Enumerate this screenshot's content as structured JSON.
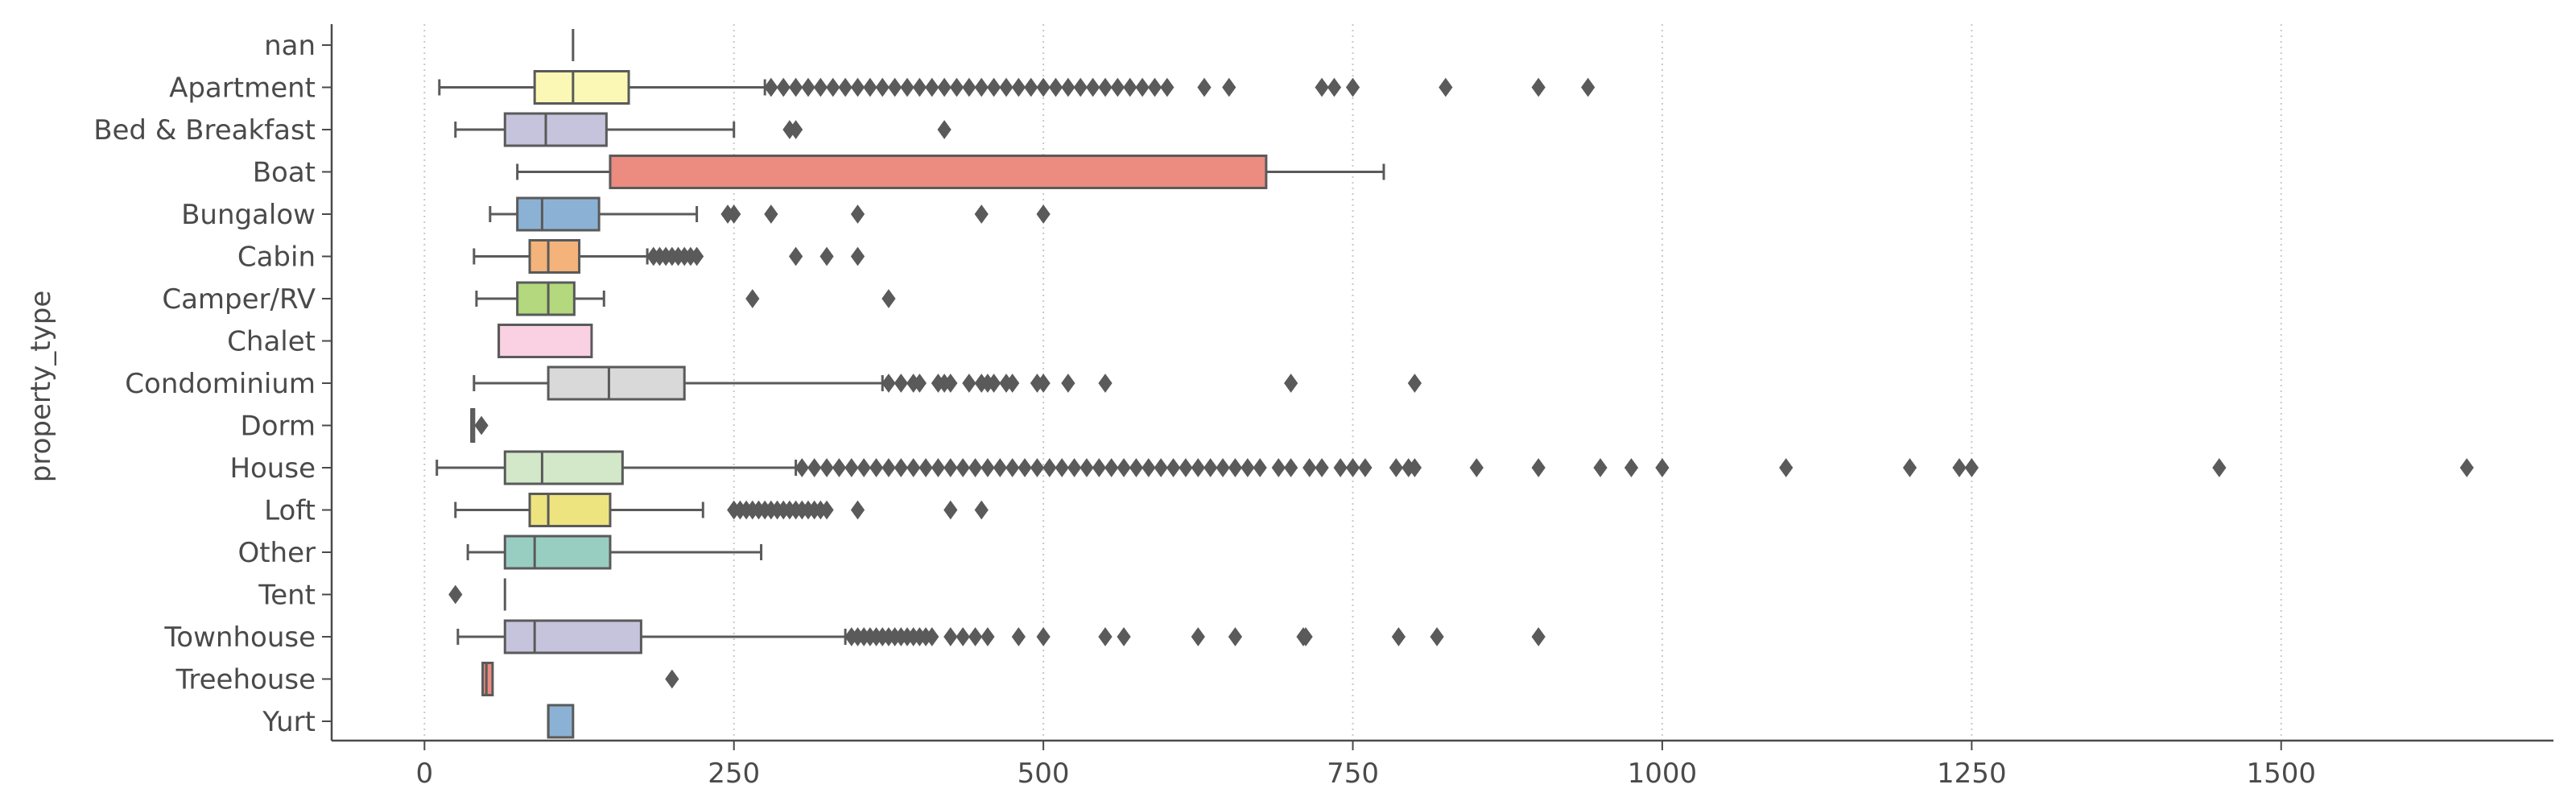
{
  "chart_data": {
    "type": "boxplot",
    "orientation": "horizontal",
    "title": "",
    "xlabel": "",
    "ylabel": "property_type",
    "xlim": [
      -75,
      1720
    ],
    "x_ticks": [
      0,
      250,
      500,
      750,
      1000,
      1250,
      1500
    ],
    "grid": "vertical-dotted",
    "categories": [
      {
        "name": "nan",
        "color": "",
        "min": 120,
        "q1": 120,
        "median": 120,
        "q3": 120,
        "max": 120,
        "outliers": []
      },
      {
        "name": "Apartment",
        "color": "#fbf8b5",
        "min": 12,
        "q1": 89,
        "median": 120,
        "q3": 165,
        "max": 275,
        "outliers": [
          280,
          290,
          300,
          310,
          320,
          330,
          340,
          350,
          360,
          370,
          380,
          390,
          400,
          410,
          420,
          430,
          440,
          450,
          460,
          470,
          480,
          490,
          500,
          510,
          520,
          530,
          540,
          550,
          560,
          570,
          580,
          590,
          600,
          630,
          650,
          725,
          735,
          750,
          825,
          900,
          940
        ]
      },
      {
        "name": "Bed & Breakfast",
        "color": "#c6c3dc",
        "min": 25,
        "q1": 65,
        "median": 98,
        "q3": 147,
        "max": 250,
        "outliers": [
          295,
          300,
          420
        ]
      },
      {
        "name": "Boat",
        "color": "#ec8b80",
        "min": 75,
        "q1": 150,
        "median": 150,
        "q3": 680,
        "max": 775,
        "outliers": []
      },
      {
        "name": "Bungalow",
        "color": "#8bb2d4",
        "min": 53,
        "q1": 75,
        "median": 95,
        "q3": 141,
        "max": 220,
        "outliers": [
          245,
          250,
          280,
          350,
          450,
          500
        ]
      },
      {
        "name": "Cabin",
        "color": "#f4b37a",
        "min": 40,
        "q1": 85,
        "median": 100,
        "q3": 125,
        "max": 180,
        "outliers": [
          185,
          190,
          195,
          200,
          205,
          210,
          215,
          220,
          300,
          325,
          350
        ]
      },
      {
        "name": "Camper/RV",
        "color": "#b3d87d",
        "min": 42,
        "q1": 75,
        "median": 100,
        "q3": 121,
        "max": 145,
        "outliers": [
          265,
          375
        ]
      },
      {
        "name": "Chalet",
        "color": "#f9d1e2",
        "min": 60,
        "q1": 60,
        "median": 60,
        "q3": 135,
        "max": 135,
        "outliers": []
      },
      {
        "name": "Condominium",
        "color": "#d9d9d9",
        "min": 40,
        "q1": 100,
        "median": 149,
        "q3": 210,
        "max": 370,
        "outliers": [
          375,
          385,
          395,
          400,
          415,
          420,
          425,
          440,
          450,
          455,
          460,
          470,
          475,
          495,
          500,
          520,
          550,
          700,
          800
        ]
      },
      {
        "name": "Dorm",
        "color": "#c9e8bf",
        "min": 38,
        "q1": 38,
        "median": 38,
        "q3": 40,
        "max": 40,
        "outliers": [
          46
        ]
      },
      {
        "name": "House",
        "color": "#d2e8c9",
        "min": 10,
        "q1": 65,
        "median": 95,
        "q3": 160,
        "max": 300,
        "outliers": [
          305,
          315,
          325,
          335,
          345,
          355,
          365,
          375,
          385,
          395,
          405,
          415,
          425,
          435,
          445,
          455,
          465,
          475,
          485,
          495,
          505,
          515,
          525,
          535,
          545,
          555,
          565,
          575,
          585,
          595,
          605,
          615,
          625,
          635,
          645,
          655,
          665,
          675,
          690,
          700,
          715,
          725,
          740,
          750,
          760,
          785,
          795,
          800,
          850,
          900,
          950,
          975,
          1000,
          1100,
          1200,
          1240,
          1250,
          1450,
          1650
        ]
      },
      {
        "name": "Loft",
        "color": "#ede480",
        "min": 25,
        "q1": 85,
        "median": 100,
        "q3": 150,
        "max": 225,
        "outliers": [
          250,
          255,
          260,
          265,
          270,
          275,
          280,
          285,
          290,
          295,
          300,
          305,
          310,
          315,
          320,
          325,
          350,
          425,
          450
        ]
      },
      {
        "name": "Other",
        "color": "#98cec1",
        "min": 35,
        "q1": 65,
        "median": 89,
        "q3": 150,
        "max": 272,
        "outliers": []
      },
      {
        "name": "Tent",
        "color": "",
        "min": 65,
        "q1": 65,
        "median": 65,
        "q3": 65,
        "max": 65,
        "outliers": [
          25
        ]
      },
      {
        "name": "Townhouse",
        "color": "#c6c3dc",
        "min": 27,
        "q1": 65,
        "median": 89,
        "q3": 175,
        "max": 340,
        "outliers": [
          345,
          350,
          355,
          360,
          365,
          370,
          375,
          380,
          385,
          390,
          395,
          400,
          405,
          410,
          425,
          435,
          445,
          455,
          480,
          500,
          550,
          565,
          625,
          655,
          710,
          712,
          787,
          818,
          900
        ]
      },
      {
        "name": "Treehouse",
        "color": "#ec8b80",
        "min": 47,
        "q1": 47,
        "median": 50,
        "q3": 55,
        "max": 55,
        "outliers": [
          200
        ]
      },
      {
        "name": "Yurt",
        "color": "#8bb2d4",
        "min": 100,
        "q1": 100,
        "median": 100,
        "q3": 120,
        "max": 120,
        "outliers": []
      }
    ]
  }
}
